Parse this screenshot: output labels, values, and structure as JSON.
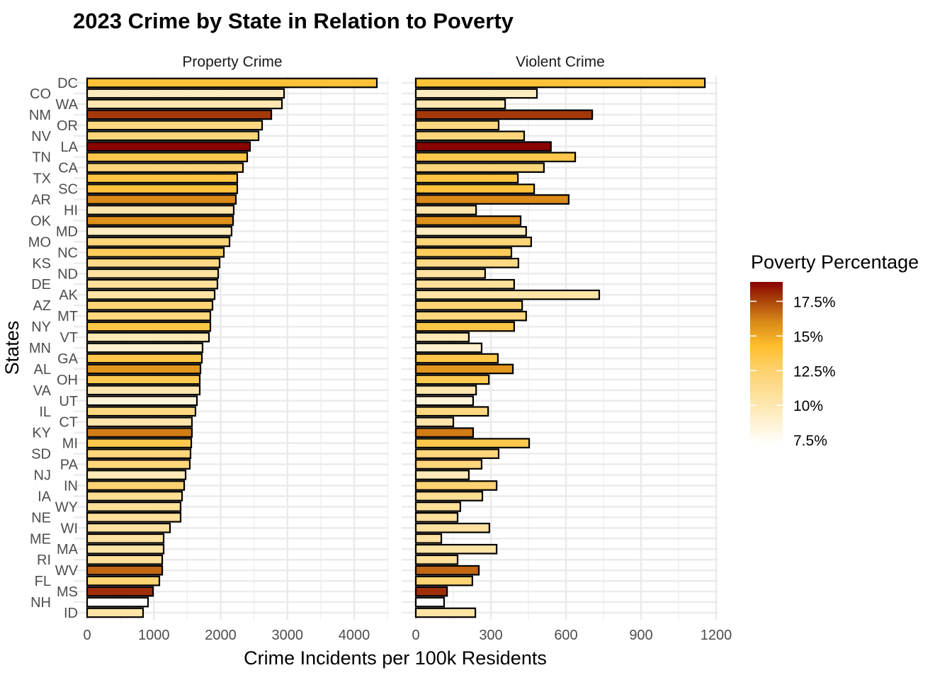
{
  "chart_data": {
    "type": "bar",
    "orientation": "horizontal",
    "title": "2023 Crime by State in Relation to Poverty",
    "xlabel": "Crime Incidents per 100k Residents",
    "ylabel": "States",
    "grid": true,
    "legend_position": "right",
    "categories": [
      "DC",
      "CO",
      "WA",
      "NM",
      "OR",
      "NV",
      "LA",
      "TN",
      "CA",
      "TX",
      "SC",
      "AR",
      "HI",
      "OK",
      "MD",
      "MO",
      "NC",
      "KS",
      "ND",
      "DE",
      "AK",
      "AZ",
      "MT",
      "NY",
      "VT",
      "MN",
      "GA",
      "AL",
      "OH",
      "VA",
      "UT",
      "IL",
      "CT",
      "KY",
      "MI",
      "SD",
      "PA",
      "NJ",
      "IN",
      "IA",
      "WY",
      "NE",
      "WI",
      "ME",
      "MA",
      "RI",
      "WV",
      "FL",
      "MS",
      "NH",
      "ID"
    ],
    "poverty_percentage": [
      14.0,
      9.4,
      10.0,
      17.8,
      11.8,
      12.0,
      18.9,
      13.5,
      12.0,
      13.7,
      13.9,
      16.0,
      10.2,
      15.8,
      9.5,
      12.0,
      13.0,
      11.6,
      10.6,
      10.8,
      10.4,
      12.2,
      11.9,
      13.6,
      9.9,
      9.0,
      13.5,
      15.6,
      13.3,
      10.2,
      8.6,
      11.8,
      10.2,
      16.3,
      13.4,
      12.0,
      12.0,
      9.7,
      12.4,
      11.1,
      11.0,
      10.8,
      10.7,
      10.6,
      10.4,
      10.8,
      16.8,
      12.3,
      18.0,
      7.2,
      10.4
    ],
    "facets": [
      {
        "name": "Property Crime",
        "xlim": [
          0,
          4450
        ],
        "ticks": [
          0,
          1000,
          2000,
          3000,
          4000
        ],
        "tick_labels": [
          "0",
          "1000",
          "2000",
          "3000",
          "4000"
        ],
        "values": [
          4340,
          2950,
          2918,
          2759,
          2621,
          2568,
          2440,
          2398,
          2334,
          2249,
          2249,
          2228,
          2196,
          2186,
          2164,
          2133,
          2048,
          1984,
          1963,
          1952,
          1910,
          1878,
          1846,
          1846,
          1825,
          1729,
          1719,
          1698,
          1687,
          1687,
          1645,
          1623,
          1570,
          1570,
          1560,
          1549,
          1538,
          1475,
          1454,
          1422,
          1400,
          1400,
          1241,
          1146,
          1146,
          1125,
          1125,
          1082,
          987,
          912,
          838
        ]
      },
      {
        "name": "Violent Crime",
        "xlim": [
          0,
          1200
        ],
        "ticks": [
          0,
          300,
          600,
          900,
          1200
        ],
        "tick_labels": [
          "0",
          "300",
          "600",
          "900",
          "1200"
        ],
        "values": [
          1155,
          484,
          357,
          705,
          331,
          433,
          540,
          637,
          512,
          408,
          473,
          611,
          241,
          419,
          441,
          461,
          382,
          410,
          277,
          393,
          733,
          425,
          441,
          393,
          212,
          263,
          328,
          388,
          292,
          241,
          229,
          289,
          150,
          229,
          453,
          331,
          263,
          212,
          323,
          266,
          178,
          167,
          294,
          102,
          323,
          167,
          252,
          226,
          125,
          113,
          238
        ]
      }
    ],
    "legend": {
      "title": "Poverty Percentage",
      "range": [
        7.2,
        18.9
      ],
      "ticks": [
        7.5,
        10,
        12.5,
        15,
        17.5
      ],
      "tick_labels": [
        "7.5%",
        "10%",
        "12.5%",
        "15%",
        "17.5%"
      ],
      "color_stops": [
        {
          "value": 7.2,
          "color": "#FFFFFF"
        },
        {
          "value": 10.0,
          "color": "#FEE7B0"
        },
        {
          "value": 12.5,
          "color": "#FDD26E"
        },
        {
          "value": 14.3,
          "color": "#FEBE2C"
        },
        {
          "value": 16.0,
          "color": "#DA8A18"
        },
        {
          "value": 17.6,
          "color": "#A8420A"
        },
        {
          "value": 18.9,
          "color": "#8B0000"
        }
      ]
    }
  }
}
